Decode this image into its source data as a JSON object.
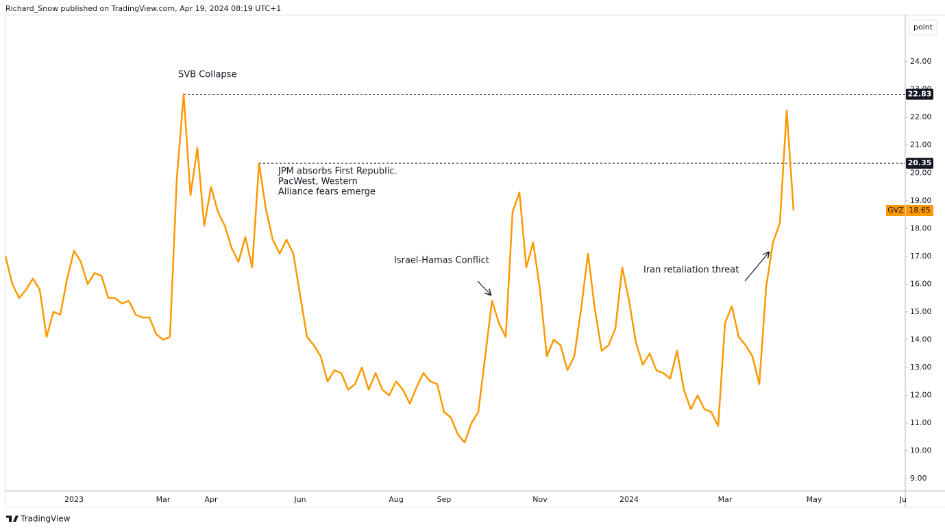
{
  "header": "Richard_Snow published on TradingView.com, Apr 19, 2024 08:19 UTC+1",
  "scale_button": "point",
  "footer": "TradingView",
  "chart_data": {
    "type": "line",
    "categories": [
      null,
      null,
      null,
      null,
      null,
      null,
      null,
      null,
      null,
      null,
      "2023",
      null,
      null,
      null,
      null,
      null,
      null,
      null,
      null,
      null,
      null,
      null,
      null,
      "Mar",
      null,
      null,
      null,
      null,
      null,
      null,
      "Apr",
      null,
      null,
      null,
      null,
      null,
      null,
      null,
      null,
      null,
      null,
      null,
      null,
      "Jun",
      null,
      null,
      null,
      null,
      null,
      null,
      null,
      null,
      null,
      null,
      null,
      null,
      null,
      "Aug",
      null,
      null,
      null,
      null,
      null,
      null,
      "Sep",
      null,
      null,
      null,
      null,
      null,
      null,
      null,
      null,
      null,
      null,
      null,
      null,
      null,
      "Nov",
      null,
      null,
      null,
      null,
      null,
      null,
      null,
      null,
      null,
      null,
      null,
      null,
      "2024",
      null,
      null,
      null,
      null,
      null,
      null,
      null,
      null,
      null,
      null,
      null,
      null,
      null,
      "Mar",
      null,
      null,
      null,
      null,
      null,
      null,
      null,
      null,
      null,
      null,
      null,
      null,
      "May",
      null,
      null,
      null,
      null,
      null,
      null,
      null,
      null,
      null,
      null,
      null,
      null,
      "Ju"
    ],
    "series": [
      {
        "name": "GVZ",
        "color": "#ff9800",
        "values": [
          17.0,
          16.0,
          15.5,
          15.8,
          16.2,
          15.8,
          14.1,
          15.0,
          14.9,
          16.2,
          17.2,
          16.8,
          16.0,
          16.4,
          16.3,
          15.5,
          15.5,
          15.3,
          15.4,
          14.9,
          14.8,
          14.8,
          14.2,
          14.0,
          14.1,
          19.8,
          22.83,
          19.2,
          20.9,
          18.1,
          19.5,
          18.6,
          18.1,
          17.3,
          16.8,
          17.7,
          16.6,
          20.35,
          18.7,
          17.6,
          17.1,
          17.6,
          17.1,
          15.6,
          14.1,
          13.8,
          13.4,
          12.5,
          12.9,
          12.8,
          12.2,
          12.4,
          13.0,
          12.2,
          12.8,
          12.2,
          12.0,
          12.5,
          12.2,
          11.7,
          12.3,
          12.8,
          12.5,
          12.4,
          11.4,
          11.2,
          10.6,
          10.3,
          11.0,
          11.4,
          13.4,
          15.4,
          14.6,
          14.1,
          18.6,
          19.3,
          16.6,
          17.5,
          15.8,
          13.4,
          14.0,
          13.8,
          12.9,
          13.4,
          15.1,
          17.1,
          15.1,
          13.6,
          13.8,
          14.4,
          16.6,
          15.4,
          13.9,
          13.1,
          13.5,
          12.9,
          12.8,
          12.6,
          13.6,
          12.2,
          11.5,
          12.0,
          11.5,
          11.4,
          10.9,
          14.6,
          15.2,
          14.1,
          13.8,
          13.4,
          12.4,
          15.9,
          17.5,
          18.2,
          22.25,
          18.65,
          null,
          null,
          null,
          null,
          null,
          null,
          null,
          null,
          null,
          null,
          null,
          null,
          null,
          null,
          null,
          null
        ]
      }
    ],
    "ylim": [
      8.56,
      25.68
    ],
    "yticks": [
      {
        "value": 9,
        "label": "9.00"
      },
      {
        "value": 10,
        "label": "10.00"
      },
      {
        "value": 11,
        "label": "11.00"
      },
      {
        "value": 12,
        "label": "12.00"
      },
      {
        "value": 13,
        "label": "13.00"
      },
      {
        "value": 14,
        "label": "14.00"
      },
      {
        "value": 15,
        "label": "15.00"
      },
      {
        "value": 16,
        "label": "16.00"
      },
      {
        "value": 17,
        "label": "17.00"
      },
      {
        "value": 18,
        "label": "18.00"
      },
      {
        "value": 19,
        "label": "19.00"
      },
      {
        "value": 20,
        "label": "20.00"
      },
      {
        "value": 21,
        "label": "21.00"
      },
      {
        "value": 22,
        "label": "22.00"
      },
      {
        "value": 23,
        "label": "23.00"
      },
      {
        "value": 24,
        "label": "24.00"
      }
    ],
    "ref_lines": [
      22.83,
      20.35
    ],
    "annotations": [
      "SVB Collapse",
      [
        "JPM absorbs First Republic.",
        "PacWest, Western",
        "Alliance fears emerge"
      ],
      "Israel-Hamas Conflict",
      "Iran retaliation threat"
    ]
  }
}
